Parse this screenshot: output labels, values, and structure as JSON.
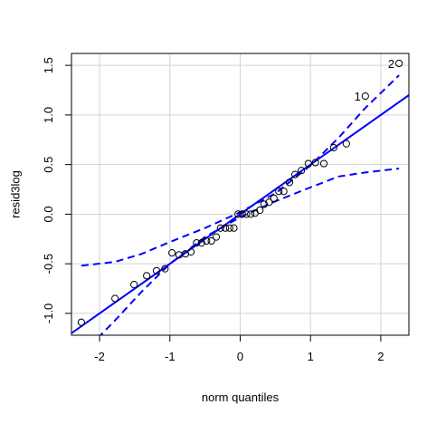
{
  "chart_data": {
    "type": "scatter",
    "xlabel": "norm quantiles",
    "ylabel": "resid3log",
    "xlim": [
      -2.4,
      2.4
    ],
    "ylim": [
      -1.22,
      1.62
    ],
    "x_ticks": [
      -2,
      -1,
      0,
      1,
      2
    ],
    "x_tick_labels": [
      "-2",
      "-1",
      "0",
      "1",
      "2"
    ],
    "y_ticks": [
      -1.0,
      -0.5,
      0.0,
      0.5,
      1.0,
      1.5
    ],
    "y_tick_labels": [
      "-1.0",
      "-0.5",
      "0.0",
      "0.5",
      "1.0",
      "1.5"
    ],
    "grid": true,
    "colors": {
      "fit": "#0000ff",
      "envelope": "#0000ff",
      "points": "#000000",
      "grid": "#d3d3d3"
    },
    "points": [
      {
        "x": -2.26,
        "y": -1.09
      },
      {
        "x": -1.78,
        "y": -0.85
      },
      {
        "x": -1.51,
        "y": -0.71
      },
      {
        "x": -1.33,
        "y": -0.62
      },
      {
        "x": -1.19,
        "y": -0.57
      },
      {
        "x": -1.07,
        "y": -0.55
      },
      {
        "x": -0.97,
        "y": -0.39
      },
      {
        "x": -0.87,
        "y": -0.41
      },
      {
        "x": -0.78,
        "y": -0.4
      },
      {
        "x": -0.7,
        "y": -0.38
      },
      {
        "x": -0.62,
        "y": -0.29
      },
      {
        "x": -0.55,
        "y": -0.29
      },
      {
        "x": -0.48,
        "y": -0.27
      },
      {
        "x": -0.41,
        "y": -0.27
      },
      {
        "x": -0.34,
        "y": -0.23
      },
      {
        "x": -0.28,
        "y": -0.14
      },
      {
        "x": -0.21,
        "y": -0.14
      },
      {
        "x": -0.15,
        "y": -0.14
      },
      {
        "x": -0.09,
        "y": -0.14
      },
      {
        "x": -0.03,
        "y": 0.0
      },
      {
        "x": 0.03,
        "y": 0.0
      },
      {
        "x": 0.09,
        "y": 0.0
      },
      {
        "x": 0.15,
        "y": 0.0
      },
      {
        "x": 0.21,
        "y": 0.01
      },
      {
        "x": 0.28,
        "y": 0.04
      },
      {
        "x": 0.34,
        "y": 0.1
      },
      {
        "x": 0.41,
        "y": 0.12
      },
      {
        "x": 0.48,
        "y": 0.16
      },
      {
        "x": 0.55,
        "y": 0.23
      },
      {
        "x": 0.62,
        "y": 0.23
      },
      {
        "x": 0.7,
        "y": 0.32
      },
      {
        "x": 0.78,
        "y": 0.4
      },
      {
        "x": 0.87,
        "y": 0.44
      },
      {
        "x": 0.97,
        "y": 0.51
      },
      {
        "x": 1.07,
        "y": 0.52
      },
      {
        "x": 1.19,
        "y": 0.51
      },
      {
        "x": 1.33,
        "y": 0.67
      },
      {
        "x": 1.51,
        "y": 0.71
      },
      {
        "x": 1.78,
        "y": 1.19
      },
      {
        "x": 2.26,
        "y": 1.52
      }
    ],
    "point_labels": [
      {
        "text": "1",
        "x": 1.78,
        "y": 1.19
      },
      {
        "text": "2",
        "x": 2.26,
        "y": 1.52
      }
    ],
    "fit_line": {
      "intercept": 0.0,
      "slope": 0.5
    },
    "envelope_upper": [
      {
        "x": -2.26,
        "y": -0.52
      },
      {
        "x": -1.78,
        "y": -0.48
      },
      {
        "x": -1.4,
        "y": -0.4
      },
      {
        "x": -1.0,
        "y": -0.28
      },
      {
        "x": -0.5,
        "y": -0.14
      },
      {
        "x": 0.0,
        "y": 0.02
      },
      {
        "x": 0.5,
        "y": 0.21
      },
      {
        "x": 1.0,
        "y": 0.49
      },
      {
        "x": 1.4,
        "y": 0.77
      },
      {
        "x": 1.78,
        "y": 1.07
      },
      {
        "x": 2.26,
        "y": 1.4
      }
    ],
    "envelope_lower": [
      {
        "x": -2.26,
        "y": -1.42
      },
      {
        "x": -1.78,
        "y": -1.07
      },
      {
        "x": -1.4,
        "y": -0.78
      },
      {
        "x": -1.0,
        "y": -0.5
      },
      {
        "x": -0.5,
        "y": -0.23
      },
      {
        "x": 0.0,
        "y": -0.03
      },
      {
        "x": 0.5,
        "y": 0.13
      },
      {
        "x": 1.0,
        "y": 0.27
      },
      {
        "x": 1.4,
        "y": 0.38
      },
      {
        "x": 1.78,
        "y": 0.42
      },
      {
        "x": 2.26,
        "y": 0.46
      }
    ]
  }
}
